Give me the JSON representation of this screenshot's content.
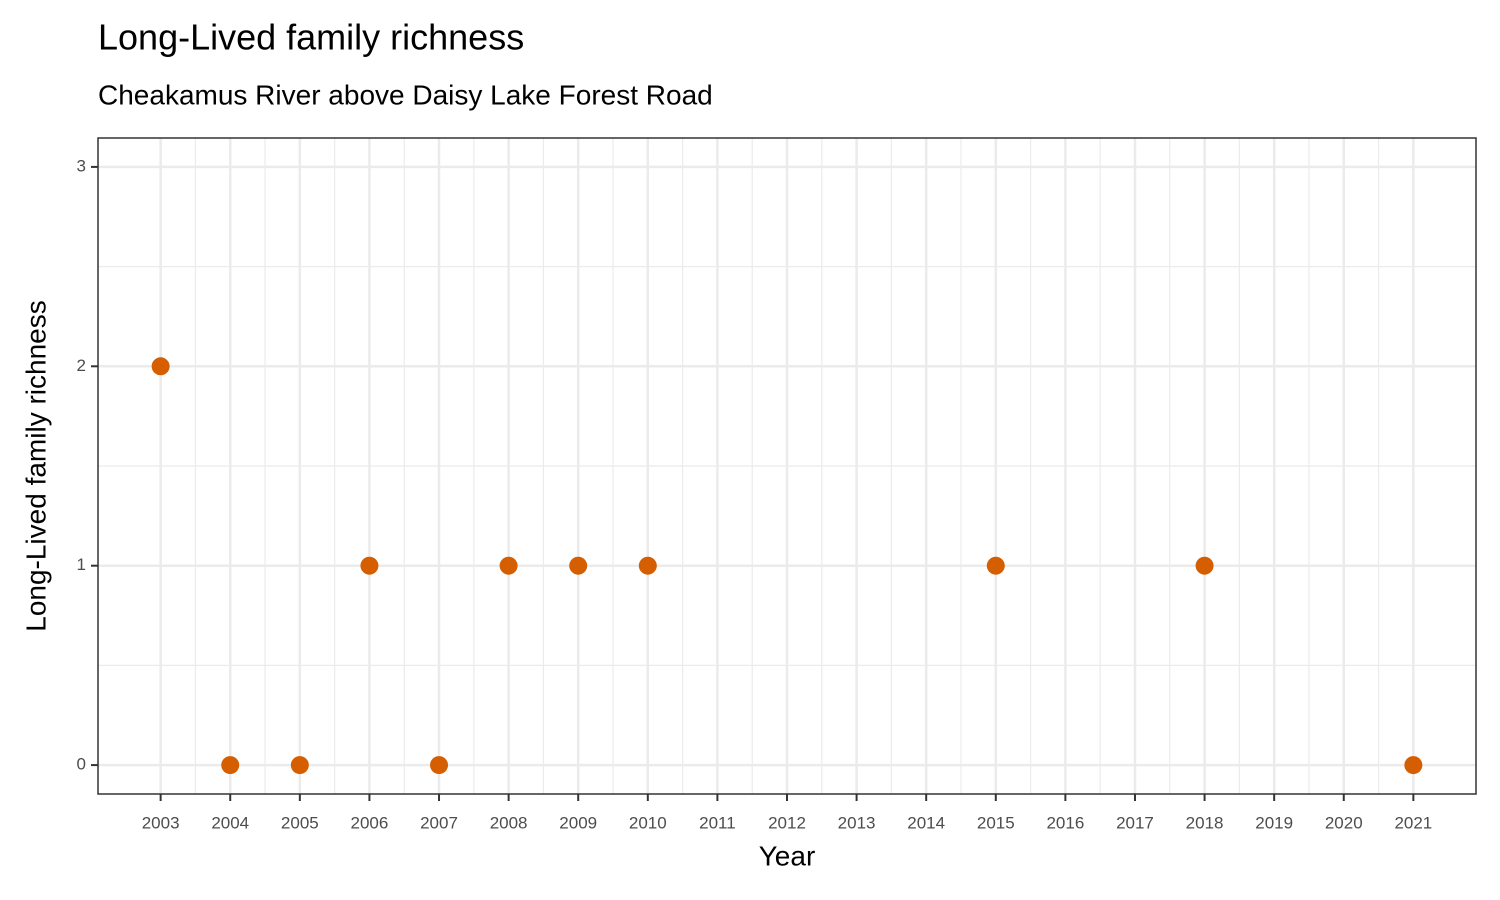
{
  "chart_data": {
    "type": "scatter",
    "title": "Long-Lived family richness",
    "subtitle": "Cheakamus River above Daisy Lake Forest Road",
    "x_label": "Year",
    "y_label": "Long-Lived family richness",
    "x": [
      2003,
      2004,
      2005,
      2006,
      2007,
      2008,
      2009,
      2010,
      2015,
      2018,
      2021
    ],
    "values": [
      2,
      0,
      0,
      1,
      0,
      1,
      1,
      1,
      1,
      1,
      0
    ],
    "color": "#d55e00",
    "xlim": [
      2002.1,
      2021.9
    ],
    "xticks": [
      2003,
      2004,
      2005,
      2006,
      2007,
      2008,
      2009,
      2010,
      2011,
      2012,
      2013,
      2014,
      2015,
      2016,
      2017,
      2018,
      2019,
      2020,
      2021
    ],
    "ylim": [
      -0.145,
      3.145
    ],
    "yticks": [
      0,
      1,
      2,
      3
    ],
    "grid": true
  }
}
